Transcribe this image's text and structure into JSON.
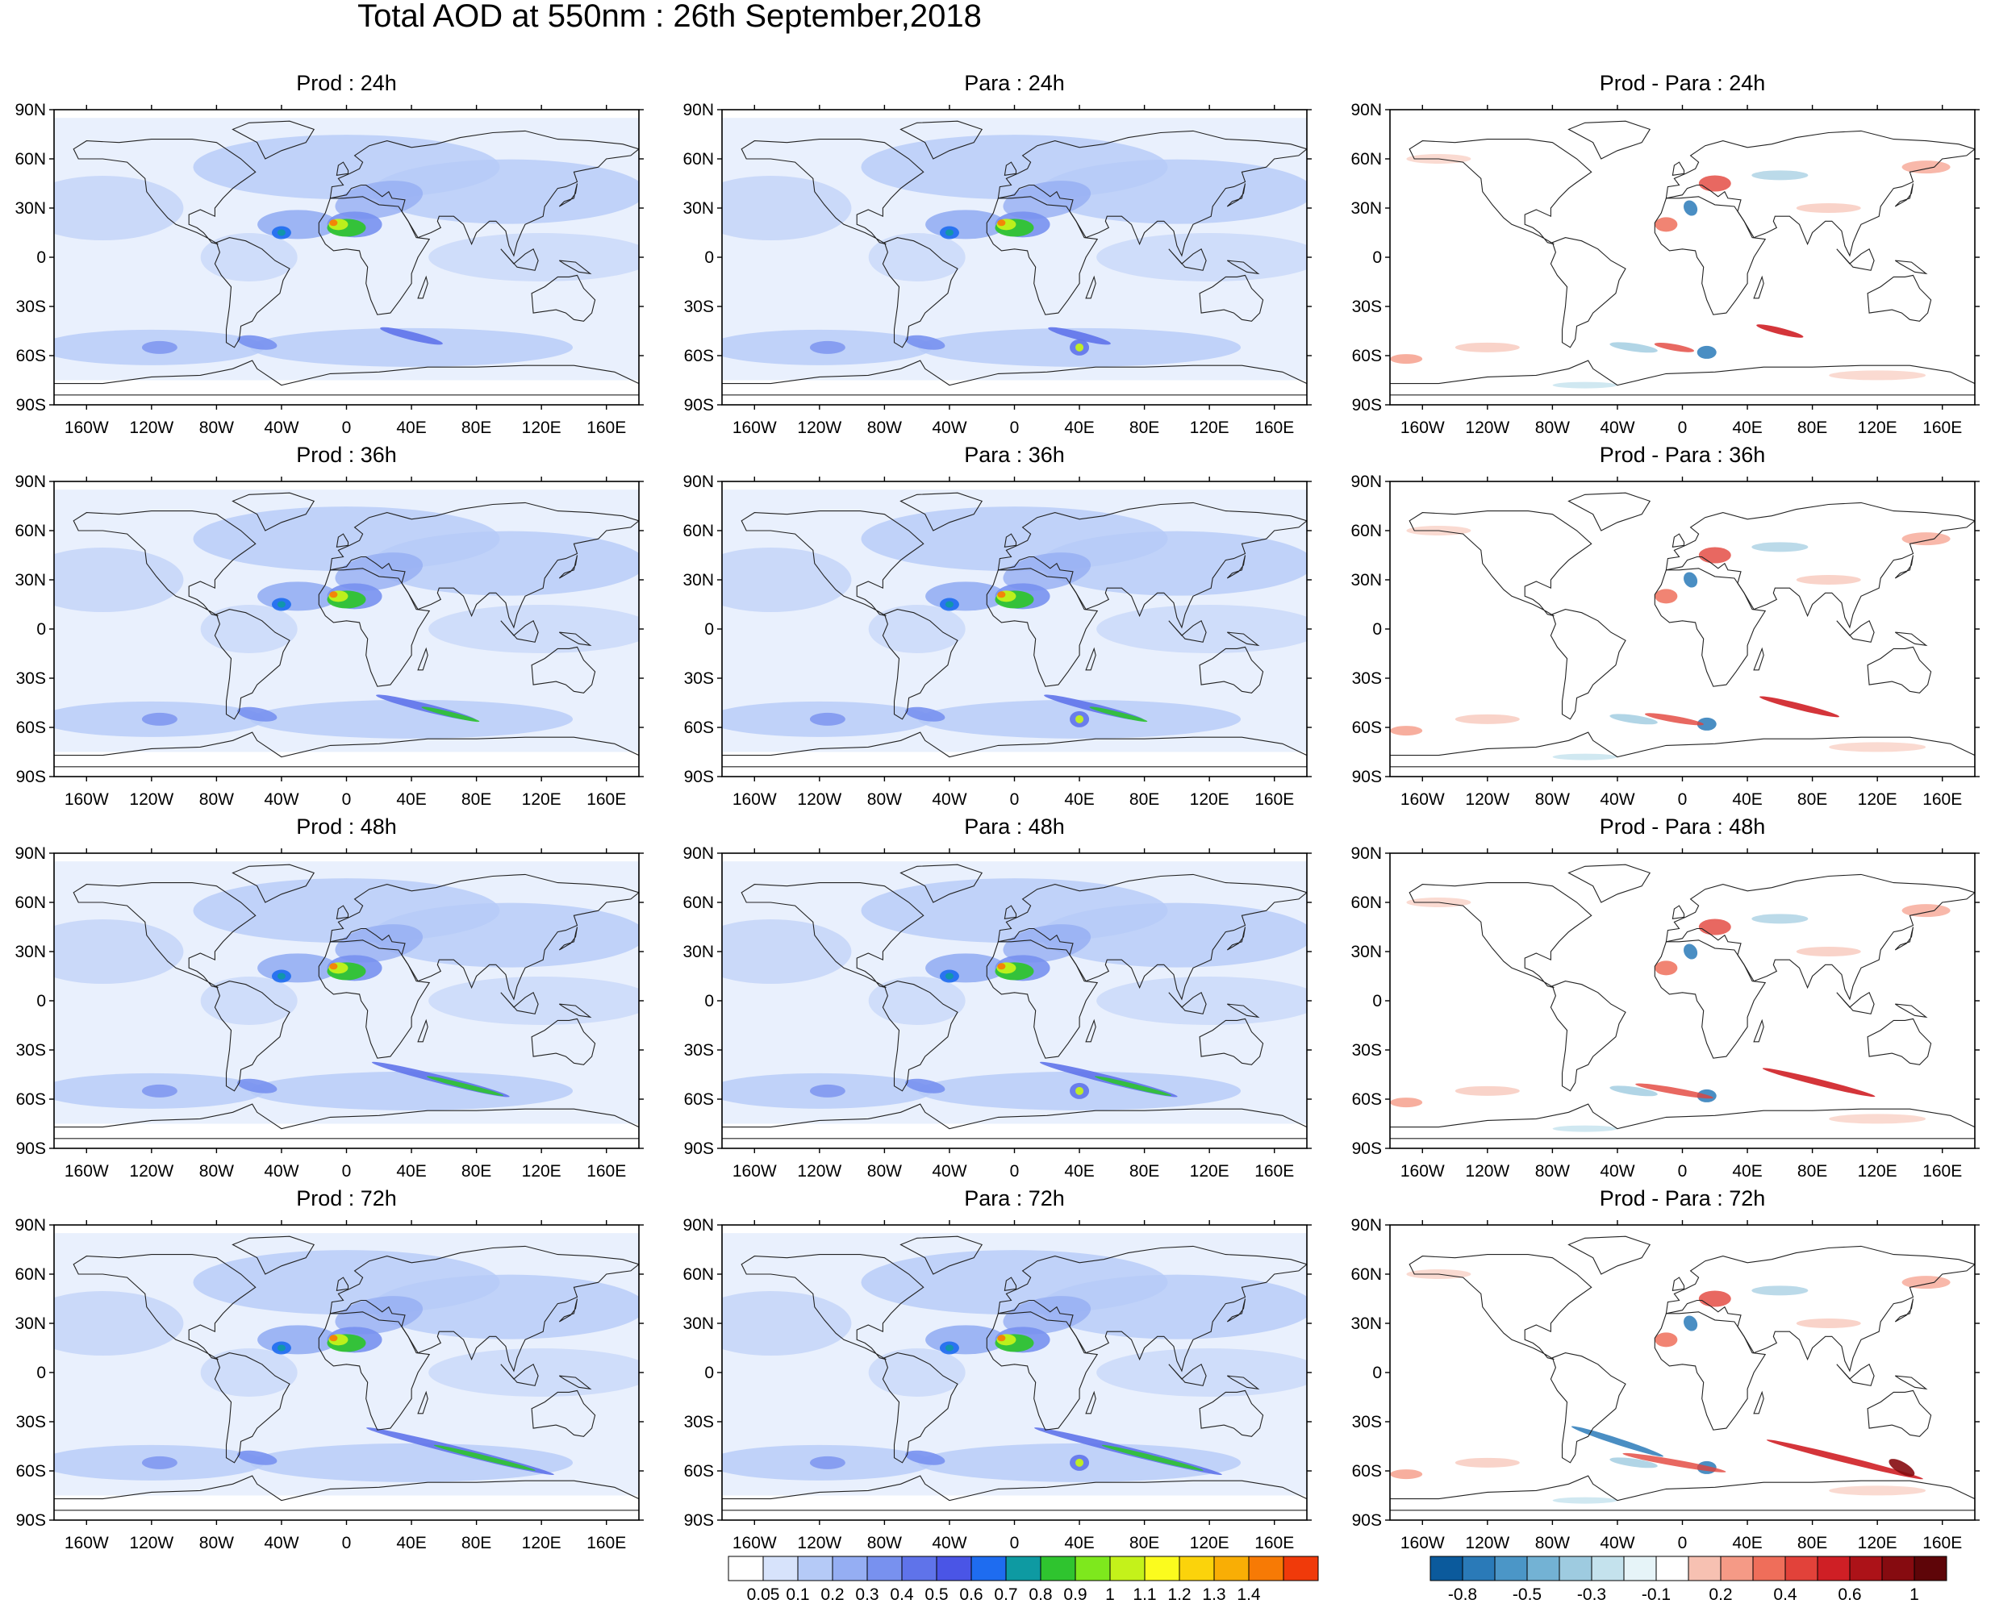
{
  "figure": {
    "title": "Total AOD at 550nm : 26th September,2018"
  },
  "axes": {
    "lat_ticks": [
      "90N",
      "60N",
      "30N",
      "0",
      "30S",
      "60S",
      "90S"
    ],
    "lon_ticks": [
      "160W",
      "120W",
      "80W",
      "40W",
      "0",
      "40E",
      "80E",
      "120E",
      "160E"
    ]
  },
  "panels": [
    {
      "title": "Prod : 24h",
      "kind": "aod",
      "column": 0,
      "row": 0
    },
    {
      "title": "Para : 24h",
      "kind": "aod",
      "column": 1,
      "row": 0
    },
    {
      "title": "Prod - Para : 24h",
      "kind": "diff",
      "column": 2,
      "row": 0
    },
    {
      "title": "Prod : 36h",
      "kind": "aod",
      "column": 0,
      "row": 1
    },
    {
      "title": "Para : 36h",
      "kind": "aod",
      "column": 1,
      "row": 1
    },
    {
      "title": "Prod - Para : 36h",
      "kind": "diff",
      "column": 2,
      "row": 1
    },
    {
      "title": "Prod : 48h",
      "kind": "aod",
      "column": 0,
      "row": 2
    },
    {
      "title": "Para : 48h",
      "kind": "aod",
      "column": 1,
      "row": 2
    },
    {
      "title": "Prod - Para : 48h",
      "kind": "diff",
      "column": 2,
      "row": 2
    },
    {
      "title": "Prod : 72h",
      "kind": "aod",
      "column": 0,
      "row": 3
    },
    {
      "title": "Para : 72h",
      "kind": "aod",
      "column": 1,
      "row": 3
    },
    {
      "title": "Prod - Para : 72h",
      "kind": "diff",
      "column": 2,
      "row": 3
    }
  ],
  "colorbars": {
    "aod": {
      "labels": [
        "0.05",
        "0.1",
        "0.2",
        "0.3",
        "0.4",
        "0.5",
        "0.6",
        "0.7",
        "0.8",
        "0.9",
        "1",
        "1.1",
        "1.2",
        "1.3",
        "1.4"
      ],
      "colors": [
        "#ffffff",
        "#d7e3fb",
        "#b5caf7",
        "#95aef3",
        "#7891ef",
        "#5f73ea",
        "#4a55e6",
        "#1e6cf0",
        "#0e9aa2",
        "#2fc42f",
        "#7ee81d",
        "#c4f21a",
        "#fbfb1e",
        "#fbd30b",
        "#f9ae05",
        "#f77a05",
        "#f03a0a"
      ]
    },
    "diff": {
      "labels": [
        "-0.8",
        "-0.5",
        "-0.3",
        "-0.1",
        "0.2",
        "0.4",
        "0.6",
        "1"
      ],
      "colors": [
        "#0b5a9c",
        "#2a7ab8",
        "#4b96c7",
        "#73b2d4",
        "#9ecbe0",
        "#c4e2ed",
        "#e6f4f8",
        "#ffffff",
        "#f7c1b2",
        "#f59a86",
        "#ef6e5a",
        "#e2423a",
        "#cf1f25",
        "#ac1218",
        "#860b10",
        "#5e0508"
      ]
    }
  },
  "chart_data": {
    "type": "heatmap",
    "title": "Total AOD at 550nm : 26th September,2018",
    "variable": "Total AOD at 550nm",
    "date": "26th September,2018",
    "x_axis": {
      "range": [
        -180,
        180
      ],
      "ticks": [
        "160W",
        "120W",
        "80W",
        "40W",
        "0",
        "40E",
        "80E",
        "120E",
        "160E"
      ]
    },
    "y_axis": {
      "range": [
        -90,
        90
      ],
      "ticks": [
        "90N",
        "60N",
        "30N",
        "0",
        "30S",
        "60S",
        "90S"
      ]
    },
    "panels": [
      "Prod : 24h",
      "Para : 24h",
      "Prod - Para : 24h",
      "Prod : 36h",
      "Para : 36h",
      "Prod - Para : 36h",
      "Prod : 48h",
      "Para : 48h",
      "Prod - Para : 48h",
      "Prod : 72h",
      "Para : 72h",
      "Prod - Para : 72h"
    ],
    "aod_levels": [
      0.05,
      0.1,
      0.2,
      0.3,
      0.4,
      0.5,
      0.6,
      0.7,
      0.8,
      0.9,
      1,
      1.1,
      1.2,
      1.3,
      1.4
    ],
    "diff_levels": [
      -0.8,
      -0.5,
      -0.3,
      -0.1,
      0.2,
      0.4,
      0.6,
      1
    ]
  }
}
